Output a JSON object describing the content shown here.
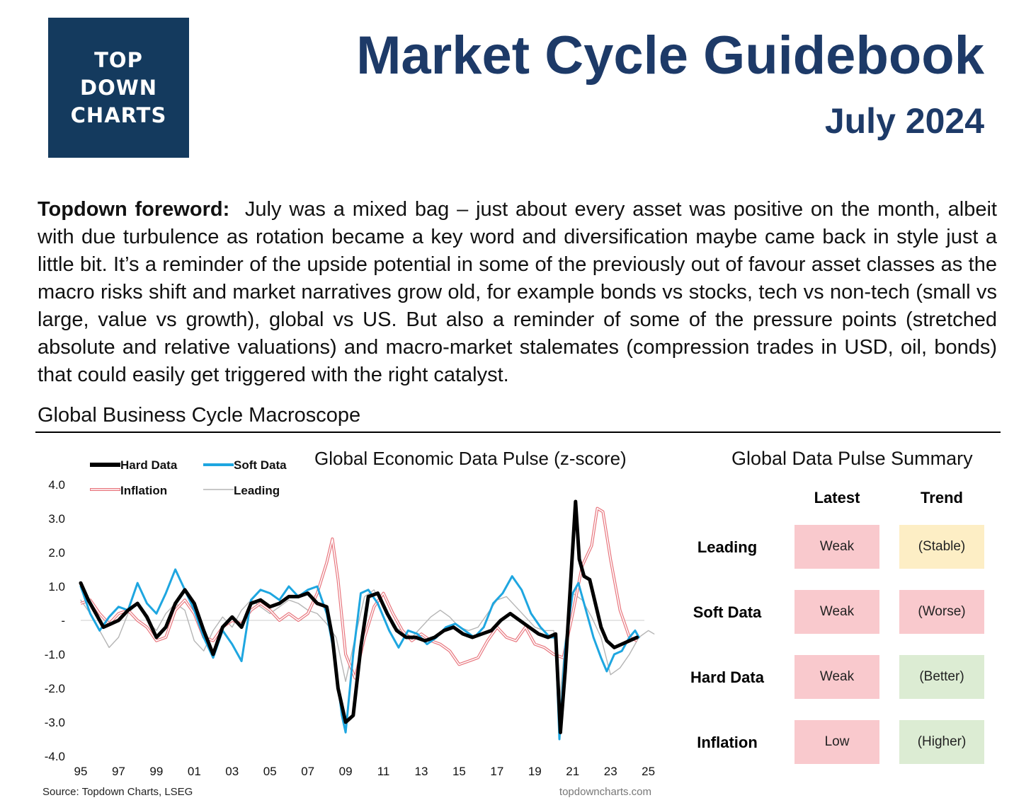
{
  "logo": {
    "lines": [
      "TOP",
      "DOWN",
      "CHARTS"
    ]
  },
  "header": {
    "title": "Market Cycle Guidebook",
    "subtitle": "July 2024"
  },
  "foreword": {
    "lead": "Topdown foreword:",
    "body": "July was a mixed bag – just about every asset was positive on the month, albeit with due turbulence as rotation became a key word and diversification maybe came back in style just a little bit.  It’s a reminder of the upside potential in some of the previously out of favour asset classes as the macro risks shift and market narratives grow old, for example bonds vs stocks, tech vs non-tech (small vs large, value vs growth), global vs US.  But also a reminder of some of the pressure points (stretched absolute and relative valuations) and macro-market stalemates (compression trades in USD, oil, bonds) that could easily get triggered with the right catalyst."
  },
  "section": {
    "title": "Global Business Cycle Macroscope"
  },
  "chart_data": {
    "type": "line",
    "title": "Global Economic Data Pulse (z-score)",
    "xlabel": "",
    "ylabel": "",
    "x_ticks": [
      "95",
      "97",
      "99",
      "01",
      "03",
      "05",
      "07",
      "09",
      "11",
      "13",
      "15",
      "17",
      "19",
      "21",
      "23",
      "25"
    ],
    "y_ticks": [
      "4.0",
      "3.0",
      "2.0",
      "1.0",
      "-",
      "-1.0",
      "-2.0",
      "-3.0",
      "-4.0"
    ],
    "xlim": [
      1995,
      2025.5
    ],
    "ylim": [
      -4,
      4
    ],
    "grid": false,
    "zero_line": true,
    "legend_position": "top-left",
    "source": "Source: Topdown Charts, LSEG",
    "watermark": "topdowncharts.com",
    "series": [
      {
        "name": "Leading",
        "color": "#b5b5b5",
        "style": "thin",
        "points": [
          [
            1995,
            0.6
          ],
          [
            1995.5,
            0.2
          ],
          [
            1996,
            -0.3
          ],
          [
            1996.5,
            -0.8
          ],
          [
            1997,
            -0.5
          ],
          [
            1997.5,
            0.2
          ],
          [
            1998,
            0.5
          ],
          [
            1998.5,
            0.0
          ],
          [
            1999,
            -0.3
          ],
          [
            1999.5,
            0.2
          ],
          [
            2000,
            0.5
          ],
          [
            2000.5,
            0.3
          ],
          [
            2001,
            -0.6
          ],
          [
            2001.5,
            -0.9
          ],
          [
            2002,
            -0.3
          ],
          [
            2002.5,
            0.1
          ],
          [
            2003,
            -0.2
          ],
          [
            2003.5,
            0.3
          ],
          [
            2004,
            0.6
          ],
          [
            2004.5,
            0.4
          ],
          [
            2005,
            0.2
          ],
          [
            2005.5,
            0.4
          ],
          [
            2006,
            0.6
          ],
          [
            2006.5,
            0.5
          ],
          [
            2007,
            0.3
          ],
          [
            2007.5,
            0.2
          ],
          [
            2008,
            -0.1
          ],
          [
            2008.5,
            -0.5
          ],
          [
            2009,
            -1.8
          ],
          [
            2009.5,
            -0.5
          ],
          [
            2010,
            0.7
          ],
          [
            2010.5,
            0.9
          ],
          [
            2011,
            0.4
          ],
          [
            2011.5,
            -0.2
          ],
          [
            2012,
            -0.3
          ],
          [
            2012.5,
            -0.5
          ],
          [
            2013,
            -0.2
          ],
          [
            2013.5,
            0.1
          ],
          [
            2014,
            0.3
          ],
          [
            2014.5,
            0.1
          ],
          [
            2015,
            -0.2
          ],
          [
            2015.5,
            -0.3
          ],
          [
            2016,
            -0.2
          ],
          [
            2016.5,
            0.2
          ],
          [
            2017,
            0.6
          ],
          [
            2017.5,
            0.7
          ],
          [
            2018,
            0.4
          ],
          [
            2018.5,
            0.1
          ],
          [
            2019,
            -0.2
          ],
          [
            2019.5,
            -0.3
          ],
          [
            2020,
            -0.3
          ],
          [
            2020.3,
            -2.5
          ],
          [
            2020.6,
            -0.6
          ],
          [
            2021,
            0.8
          ],
          [
            2021.5,
            0.6
          ],
          [
            2022,
            0.1
          ],
          [
            2022.5,
            -0.5
          ],
          [
            2023,
            -1.6
          ],
          [
            2023.5,
            -1.4
          ],
          [
            2024,
            -1.0
          ],
          [
            2024.5,
            -0.5
          ],
          [
            2025,
            -0.3
          ],
          [
            2025.3,
            -0.4
          ]
        ]
      },
      {
        "name": "Inflation",
        "color": "#e8767e",
        "style": "double",
        "points": [
          [
            1995,
            0.5
          ],
          [
            1995.5,
            0.6
          ],
          [
            1996,
            0.2
          ],
          [
            1996.5,
            -0.1
          ],
          [
            1997,
            0.2
          ],
          [
            1997.5,
            0.3
          ],
          [
            1998,
            0.0
          ],
          [
            1998.5,
            -0.2
          ],
          [
            1999,
            -0.6
          ],
          [
            1999.5,
            -0.5
          ],
          [
            2000,
            0.3
          ],
          [
            2000.5,
            0.6
          ],
          [
            2001,
            0.2
          ],
          [
            2001.5,
            -0.5
          ],
          [
            2002,
            -0.6
          ],
          [
            2002.5,
            -0.2
          ],
          [
            2003,
            0.0
          ],
          [
            2003.5,
            -0.1
          ],
          [
            2004,
            0.3
          ],
          [
            2004.5,
            0.5
          ],
          [
            2005,
            0.3
          ],
          [
            2005.5,
            0.0
          ],
          [
            2006,
            0.2
          ],
          [
            2006.5,
            0.0
          ],
          [
            2007,
            0.2
          ],
          [
            2007.5,
            0.8
          ],
          [
            2008,
            1.7
          ],
          [
            2008.3,
            2.4
          ],
          [
            2008.6,
            1.2
          ],
          [
            2009,
            -1.0
          ],
          [
            2009.5,
            -1.7
          ],
          [
            2010,
            -0.5
          ],
          [
            2010.5,
            0.4
          ],
          [
            2011,
            0.8
          ],
          [
            2011.5,
            0.2
          ],
          [
            2012,
            -0.3
          ],
          [
            2012.5,
            -0.6
          ],
          [
            2013,
            -0.4
          ],
          [
            2013.5,
            -0.6
          ],
          [
            2014,
            -0.7
          ],
          [
            2014.5,
            -0.9
          ],
          [
            2015,
            -1.3
          ],
          [
            2015.5,
            -1.2
          ],
          [
            2016,
            -1.1
          ],
          [
            2016.5,
            -0.6
          ],
          [
            2017,
            -0.2
          ],
          [
            2017.5,
            -0.5
          ],
          [
            2018,
            -0.6
          ],
          [
            2018.5,
            -0.2
          ],
          [
            2019,
            -0.7
          ],
          [
            2019.5,
            -0.8
          ],
          [
            2020,
            -1.0
          ],
          [
            2020.5,
            -1.1
          ],
          [
            2021,
            0.2
          ],
          [
            2021.5,
            1.6
          ],
          [
            2022,
            2.2
          ],
          [
            2022.3,
            3.3
          ],
          [
            2022.6,
            3.2
          ],
          [
            2023,
            1.8
          ],
          [
            2023.5,
            0.3
          ],
          [
            2024,
            -0.5
          ],
          [
            2024.4,
            -0.6
          ]
        ]
      },
      {
        "name": "Soft Data",
        "color": "#1ea6e0",
        "style": "medium",
        "points": [
          [
            1995,
            1.0
          ],
          [
            1995.5,
            0.2
          ],
          [
            1996,
            -0.3
          ],
          [
            1996.5,
            0.1
          ],
          [
            1997,
            0.4
          ],
          [
            1997.5,
            0.3
          ],
          [
            1998,
            1.1
          ],
          [
            1998.5,
            0.5
          ],
          [
            1999,
            0.2
          ],
          [
            1999.5,
            0.8
          ],
          [
            2000,
            1.5
          ],
          [
            2000.5,
            0.9
          ],
          [
            2001,
            0.3
          ],
          [
            2001.5,
            -0.5
          ],
          [
            2002,
            -1.1
          ],
          [
            2002.5,
            -0.3
          ],
          [
            2003,
            -0.7
          ],
          [
            2003.5,
            -1.2
          ],
          [
            2004,
            0.6
          ],
          [
            2004.5,
            0.9
          ],
          [
            2005,
            0.8
          ],
          [
            2005.5,
            0.6
          ],
          [
            2006,
            1.0
          ],
          [
            2006.5,
            0.7
          ],
          [
            2007,
            0.9
          ],
          [
            2007.5,
            1.0
          ],
          [
            2008,
            0.2
          ],
          [
            2008.4,
            -1.0
          ],
          [
            2008.8,
            -2.8
          ],
          [
            2009,
            -3.3
          ],
          [
            2009.4,
            -1.0
          ],
          [
            2009.8,
            0.8
          ],
          [
            2010.2,
            0.9
          ],
          [
            2010.7,
            0.5
          ],
          [
            2011.3,
            -0.3
          ],
          [
            2011.8,
            -0.8
          ],
          [
            2012.3,
            -0.3
          ],
          [
            2012.8,
            -0.4
          ],
          [
            2013.3,
            -0.7
          ],
          [
            2013.8,
            -0.5
          ],
          [
            2014.3,
            -0.2
          ],
          [
            2014.8,
            -0.1
          ],
          [
            2015.3,
            -0.3
          ],
          [
            2015.8,
            -0.5
          ],
          [
            2016.3,
            -0.2
          ],
          [
            2016.8,
            0.5
          ],
          [
            2017.3,
            0.8
          ],
          [
            2017.8,
            1.3
          ],
          [
            2018.3,
            0.9
          ],
          [
            2018.8,
            0.2
          ],
          [
            2019.3,
            -0.2
          ],
          [
            2019.8,
            -0.5
          ],
          [
            2020.1,
            -0.5
          ],
          [
            2020.3,
            -3.5
          ],
          [
            2020.6,
            -0.8
          ],
          [
            2021,
            0.8
          ],
          [
            2021.3,
            1.1
          ],
          [
            2021.7,
            0.3
          ],
          [
            2022.1,
            -0.5
          ],
          [
            2022.5,
            -1.1
          ],
          [
            2022.8,
            -1.5
          ],
          [
            2023.2,
            -1.0
          ],
          [
            2023.6,
            -0.9
          ],
          [
            2024,
            -0.5
          ],
          [
            2024.3,
            -0.3
          ],
          [
            2024.5,
            -0.5
          ]
        ]
      },
      {
        "name": "Hard Data",
        "color": "#000000",
        "style": "thick",
        "points": [
          [
            1995,
            1.1
          ],
          [
            1995.4,
            0.6
          ],
          [
            1995.8,
            0.2
          ],
          [
            1996.2,
            -0.2
          ],
          [
            1996.6,
            -0.1
          ],
          [
            1997,
            0.0
          ],
          [
            1997.5,
            0.3
          ],
          [
            1998,
            0.5
          ],
          [
            1998.5,
            0.1
          ],
          [
            1999,
            -0.5
          ],
          [
            1999.5,
            -0.2
          ],
          [
            2000,
            0.5
          ],
          [
            2000.5,
            0.9
          ],
          [
            2001,
            0.5
          ],
          [
            2001.5,
            -0.3
          ],
          [
            2002,
            -1.0
          ],
          [
            2002.5,
            -0.2
          ],
          [
            2003,
            0.1
          ],
          [
            2003.5,
            -0.2
          ],
          [
            2004,
            0.5
          ],
          [
            2004.5,
            0.6
          ],
          [
            2005,
            0.4
          ],
          [
            2005.5,
            0.5
          ],
          [
            2006,
            0.7
          ],
          [
            2006.5,
            0.7
          ],
          [
            2007,
            0.8
          ],
          [
            2007.5,
            0.5
          ],
          [
            2008,
            0.4
          ],
          [
            2008.3,
            -0.5
          ],
          [
            2008.6,
            -2.0
          ],
          [
            2009,
            -3.0
          ],
          [
            2009.4,
            -2.8
          ],
          [
            2009.8,
            -0.8
          ],
          [
            2010.2,
            0.7
          ],
          [
            2010.7,
            0.8
          ],
          [
            2011.2,
            0.2
          ],
          [
            2011.7,
            -0.3
          ],
          [
            2012.2,
            -0.5
          ],
          [
            2012.7,
            -0.5
          ],
          [
            2013.2,
            -0.6
          ],
          [
            2013.7,
            -0.5
          ],
          [
            2014.2,
            -0.3
          ],
          [
            2014.7,
            -0.2
          ],
          [
            2015.2,
            -0.4
          ],
          [
            2015.7,
            -0.5
          ],
          [
            2016.2,
            -0.4
          ],
          [
            2016.7,
            -0.3
          ],
          [
            2017.2,
            0.0
          ],
          [
            2017.7,
            0.2
          ],
          [
            2018.2,
            0.0
          ],
          [
            2018.7,
            -0.2
          ],
          [
            2019.2,
            -0.4
          ],
          [
            2019.7,
            -0.5
          ],
          [
            2020.1,
            -0.4
          ],
          [
            2020.35,
            -3.3
          ],
          [
            2020.6,
            -1.5
          ],
          [
            2020.9,
            1.2
          ],
          [
            2021.15,
            3.5
          ],
          [
            2021.35,
            1.8
          ],
          [
            2021.6,
            1.3
          ],
          [
            2021.9,
            1.2
          ],
          [
            2022.2,
            0.5
          ],
          [
            2022.5,
            -0.2
          ],
          [
            2022.8,
            -0.6
          ],
          [
            2023.2,
            -0.8
          ],
          [
            2023.6,
            -0.7
          ],
          [
            2024,
            -0.6
          ],
          [
            2024.4,
            -0.5
          ]
        ]
      }
    ]
  },
  "summary": {
    "title": "Global Data Pulse Summary",
    "col_latest": "Latest",
    "col_trend": "Trend",
    "rows": [
      {
        "label": "Leading",
        "latest": "Weak",
        "trend": "(Stable)",
        "trend_state": "stable"
      },
      {
        "label": "Soft Data",
        "latest": "Weak",
        "trend": "(Worse)",
        "trend_state": "worse"
      },
      {
        "label": "Hard Data",
        "latest": "Weak",
        "trend": "(Better)",
        "trend_state": "better"
      },
      {
        "label": "Inflation",
        "latest": "Low",
        "trend": "(Higher)",
        "trend_state": "better"
      }
    ]
  }
}
